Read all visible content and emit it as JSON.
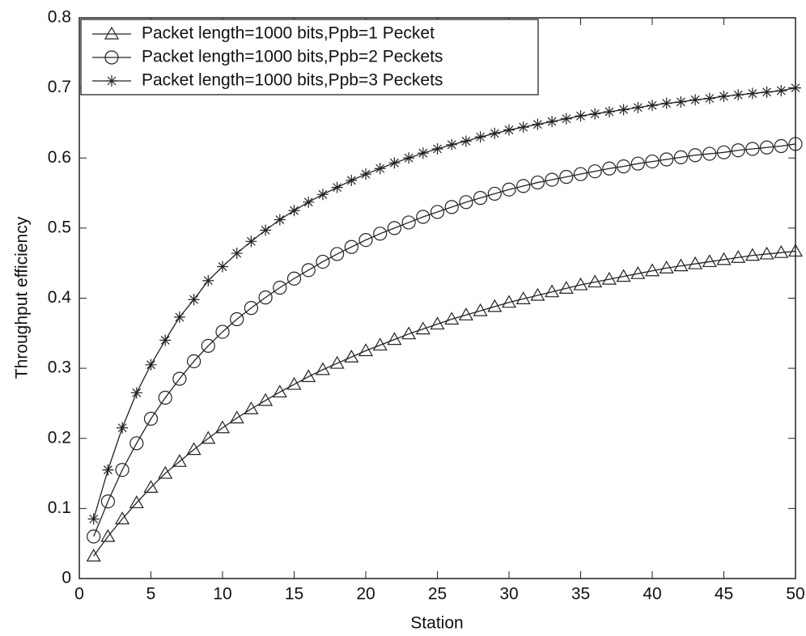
{
  "chart_data": {
    "type": "line",
    "xlabel": "Station",
    "ylabel": "Throughput  efficiency",
    "x": [
      1,
      2,
      3,
      4,
      5,
      6,
      7,
      8,
      9,
      10,
      11,
      12,
      13,
      14,
      15,
      16,
      17,
      18,
      19,
      20,
      21,
      22,
      23,
      24,
      25,
      26,
      27,
      28,
      29,
      30,
      31,
      32,
      33,
      34,
      35,
      36,
      37,
      38,
      39,
      40,
      41,
      42,
      43,
      44,
      45,
      46,
      47,
      48,
      49,
      50
    ],
    "xlim": [
      0,
      50
    ],
    "xticks": [
      0,
      5,
      10,
      15,
      20,
      25,
      30,
      35,
      40,
      45,
      50
    ],
    "ylim": [
      0,
      0.8
    ],
    "yticks": [
      0,
      0.1,
      0.2,
      0.3,
      0.4,
      0.5,
      0.6,
      0.7,
      0.8
    ],
    "legend": "upper left",
    "series": [
      {
        "name": "Packet length=1000 bits,Ppb=1 Pecket",
        "color": "#222222",
        "marker": "triangle",
        "values": [
          0.032,
          0.06,
          0.085,
          0.108,
          0.13,
          0.15,
          0.167,
          0.184,
          0.2,
          0.215,
          0.229,
          0.242,
          0.254,
          0.266,
          0.277,
          0.288,
          0.298,
          0.307,
          0.316,
          0.325,
          0.333,
          0.341,
          0.349,
          0.356,
          0.363,
          0.37,
          0.376,
          0.382,
          0.388,
          0.394,
          0.399,
          0.404,
          0.409,
          0.414,
          0.419,
          0.423,
          0.427,
          0.431,
          0.435,
          0.439,
          0.443,
          0.446,
          0.449,
          0.452,
          0.455,
          0.458,
          0.461,
          0.463,
          0.465,
          0.467
        ]
      },
      {
        "name": "Packet length=1000 bits,Ppb=2 Peckets",
        "color": "#222222",
        "marker": "circle",
        "values": [
          0.06,
          0.11,
          0.155,
          0.193,
          0.228,
          0.258,
          0.285,
          0.31,
          0.332,
          0.352,
          0.37,
          0.386,
          0.401,
          0.415,
          0.428,
          0.44,
          0.452,
          0.463,
          0.473,
          0.483,
          0.492,
          0.5,
          0.508,
          0.516,
          0.523,
          0.53,
          0.537,
          0.543,
          0.549,
          0.555,
          0.56,
          0.565,
          0.569,
          0.573,
          0.577,
          0.581,
          0.585,
          0.588,
          0.592,
          0.595,
          0.598,
          0.601,
          0.604,
          0.606,
          0.608,
          0.611,
          0.613,
          0.615,
          0.617,
          0.62
        ]
      },
      {
        "name": "Packet length=1000 bits,Ppb=3 Peckets",
        "color": "#222222",
        "marker": "star",
        "values": [
          0.085,
          0.155,
          0.215,
          0.265,
          0.305,
          0.34,
          0.373,
          0.398,
          0.425,
          0.445,
          0.464,
          0.481,
          0.497,
          0.512,
          0.525,
          0.537,
          0.548,
          0.558,
          0.568,
          0.577,
          0.585,
          0.593,
          0.6,
          0.607,
          0.613,
          0.619,
          0.624,
          0.63,
          0.635,
          0.64,
          0.644,
          0.648,
          0.652,
          0.656,
          0.66,
          0.663,
          0.666,
          0.669,
          0.672,
          0.675,
          0.678,
          0.68,
          0.683,
          0.685,
          0.688,
          0.69,
          0.692,
          0.694,
          0.696,
          0.7
        ]
      }
    ]
  }
}
